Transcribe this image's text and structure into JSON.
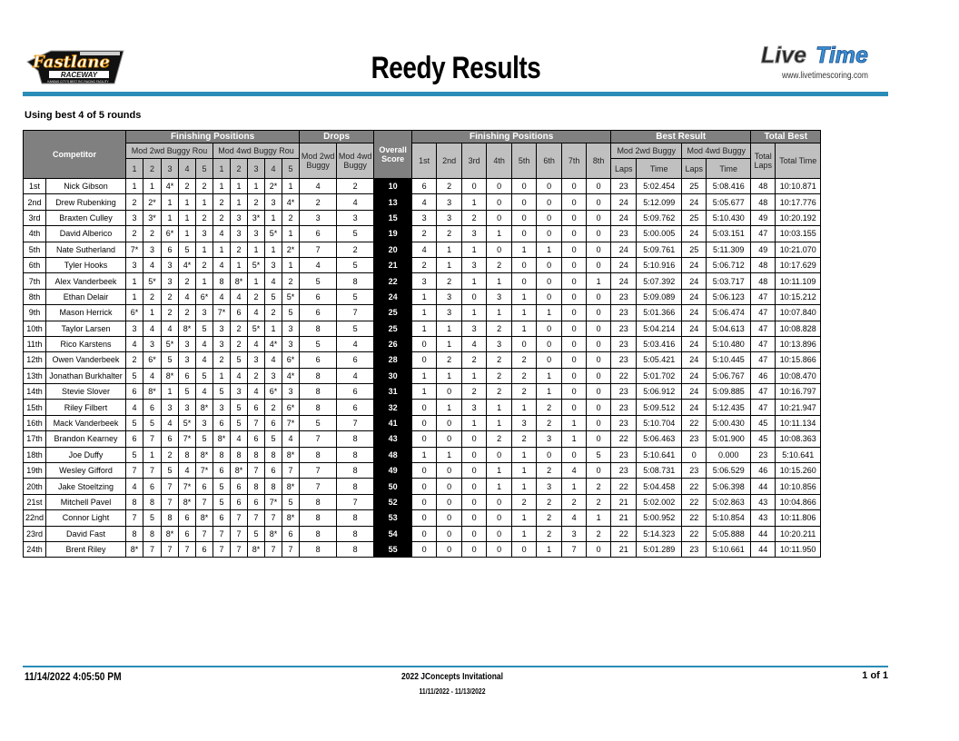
{
  "header": {
    "title": "Reedy Results",
    "left_logo": "Fastlane Raceway - Kansas City's Best R/C Racing Facility",
    "right_logo": "LiveTime",
    "website": "www.livetimescoring.com",
    "subtitle": "Using best 4 of 5 rounds",
    "accent_color": "#2a8db8"
  },
  "table": {
    "competitor": "Competitor",
    "finishing_positions": "Finishing Positions",
    "drops": "Drops",
    "overall_score": "Overall Score",
    "best_result": "Best Result",
    "total_best": "Total Best",
    "class_2wd_rounds": "Mod 2wd Buggy Rou",
    "class_4wd_rounds": "Mod 4wd Buggy Rou",
    "drop_2wd": "Mod 2wd Buggy",
    "drop_4wd": "Mod 4wd Buggy",
    "round_numbers": [
      "1",
      "2",
      "3",
      "4",
      "5"
    ],
    "place_headers": [
      "1st",
      "2nd",
      "3rd",
      "4th",
      "5th",
      "6th",
      "7th",
      "8th"
    ],
    "best_2wd": "Mod 2wd Buggy",
    "best_4wd": "Mod 4wd Buggy",
    "laps": "Laps",
    "time": "Time",
    "total_laps": "Total Laps",
    "total_time": "Total Time"
  },
  "results": [
    {
      "pos": "1st",
      "name": "Nick Gibson",
      "r2": [
        "1",
        "1",
        "4*",
        "2",
        "2"
      ],
      "r4": [
        "1",
        "1",
        "1",
        "2*",
        "1"
      ],
      "d2": "4",
      "d4": "2",
      "score": "10",
      "fin": [
        "6",
        "2",
        "0",
        "0",
        "0",
        "0",
        "0",
        "0"
      ],
      "l2": "23",
      "t2": "5:02.454",
      "l4": "25",
      "t4": "5:08.416",
      "tl": "48",
      "tt": "10:10.871"
    },
    {
      "pos": "2nd",
      "name": "Drew Rubenking",
      "r2": [
        "2",
        "2*",
        "1",
        "1",
        "1"
      ],
      "r4": [
        "2",
        "1",
        "2",
        "3",
        "4*"
      ],
      "d2": "2",
      "d4": "4",
      "score": "13",
      "fin": [
        "4",
        "3",
        "1",
        "0",
        "0",
        "0",
        "0",
        "0"
      ],
      "l2": "24",
      "t2": "5:12.099",
      "l4": "24",
      "t4": "5:05.677",
      "tl": "48",
      "tt": "10:17.776"
    },
    {
      "pos": "3rd",
      "name": "Braxten Culley",
      "r2": [
        "3",
        "3*",
        "1",
        "1",
        "2"
      ],
      "r4": [
        "2",
        "3",
        "3*",
        "1",
        "2"
      ],
      "d2": "3",
      "d4": "3",
      "score": "15",
      "fin": [
        "3",
        "3",
        "2",
        "0",
        "0",
        "0",
        "0",
        "0"
      ],
      "l2": "24",
      "t2": "5:09.762",
      "l4": "25",
      "t4": "5:10.430",
      "tl": "49",
      "tt": "10:20.192"
    },
    {
      "pos": "4th",
      "name": "David Alberico",
      "r2": [
        "2",
        "2",
        "6*",
        "1",
        "3"
      ],
      "r4": [
        "4",
        "3",
        "3",
        "5*",
        "1"
      ],
      "d2": "6",
      "d4": "5",
      "score": "19",
      "fin": [
        "2",
        "2",
        "3",
        "1",
        "0",
        "0",
        "0",
        "0"
      ],
      "l2": "23",
      "t2": "5:00.005",
      "l4": "24",
      "t4": "5:03.151",
      "tl": "47",
      "tt": "10:03.155"
    },
    {
      "pos": "5th",
      "name": "Nate Sutherland",
      "r2": [
        "7*",
        "3",
        "6",
        "5",
        "1"
      ],
      "r4": [
        "1",
        "2",
        "1",
        "1",
        "2*"
      ],
      "d2": "7",
      "d4": "2",
      "score": "20",
      "fin": [
        "4",
        "1",
        "1",
        "0",
        "1",
        "1",
        "0",
        "0"
      ],
      "l2": "24",
      "t2": "5:09.761",
      "l4": "25",
      "t4": "5:11.309",
      "tl": "49",
      "tt": "10:21.070"
    },
    {
      "pos": "6th",
      "name": "Tyler Hooks",
      "r2": [
        "3",
        "4",
        "3",
        "4*",
        "2"
      ],
      "r4": [
        "4",
        "1",
        "5*",
        "3",
        "1"
      ],
      "d2": "4",
      "d4": "5",
      "score": "21",
      "fin": [
        "2",
        "1",
        "3",
        "2",
        "0",
        "0",
        "0",
        "0"
      ],
      "l2": "24",
      "t2": "5:10.916",
      "l4": "24",
      "t4": "5:06.712",
      "tl": "48",
      "tt": "10:17.629"
    },
    {
      "pos": "7th",
      "name": "Alex Vanderbeek",
      "r2": [
        "1",
        "5*",
        "3",
        "2",
        "1"
      ],
      "r4": [
        "8",
        "8*",
        "1",
        "4",
        "2"
      ],
      "d2": "5",
      "d4": "8",
      "score": "22",
      "fin": [
        "3",
        "2",
        "1",
        "1",
        "0",
        "0",
        "0",
        "1"
      ],
      "l2": "24",
      "t2": "5:07.392",
      "l4": "24",
      "t4": "5:03.717",
      "tl": "48",
      "tt": "10:11.109"
    },
    {
      "pos": "8th",
      "name": "Ethan Delair",
      "r2": [
        "1",
        "2",
        "2",
        "4",
        "6*"
      ],
      "r4": [
        "4",
        "4",
        "2",
        "5",
        "5*"
      ],
      "d2": "6",
      "d4": "5",
      "score": "24",
      "fin": [
        "1",
        "3",
        "0",
        "3",
        "1",
        "0",
        "0",
        "0"
      ],
      "l2": "23",
      "t2": "5:09.089",
      "l4": "24",
      "t4": "5:06.123",
      "tl": "47",
      "tt": "10:15.212"
    },
    {
      "pos": "9th",
      "name": "Mason Herrick",
      "r2": [
        "6*",
        "1",
        "2",
        "2",
        "3"
      ],
      "r4": [
        "7*",
        "6",
        "4",
        "2",
        "5"
      ],
      "d2": "6",
      "d4": "7",
      "score": "25",
      "fin": [
        "1",
        "3",
        "1",
        "1",
        "1",
        "1",
        "0",
        "0"
      ],
      "l2": "23",
      "t2": "5:01.366",
      "l4": "24",
      "t4": "5:06.474",
      "tl": "47",
      "tt": "10:07.840"
    },
    {
      "pos": "10th",
      "name": "Taylor Larsen",
      "r2": [
        "3",
        "4",
        "4",
        "8*",
        "5"
      ],
      "r4": [
        "3",
        "2",
        "5*",
        "1",
        "3"
      ],
      "d2": "8",
      "d4": "5",
      "score": "25",
      "fin": [
        "1",
        "1",
        "3",
        "2",
        "1",
        "0",
        "0",
        "0"
      ],
      "l2": "23",
      "t2": "5:04.214",
      "l4": "24",
      "t4": "5:04.613",
      "tl": "47",
      "tt": "10:08.828"
    },
    {
      "pos": "11th",
      "name": "Rico Karstens",
      "r2": [
        "4",
        "3",
        "5*",
        "3",
        "4"
      ],
      "r4": [
        "3",
        "2",
        "4",
        "4*",
        "3"
      ],
      "d2": "5",
      "d4": "4",
      "score": "26",
      "fin": [
        "0",
        "1",
        "4",
        "3",
        "0",
        "0",
        "0",
        "0"
      ],
      "l2": "23",
      "t2": "5:03.416",
      "l4": "24",
      "t4": "5:10.480",
      "tl": "47",
      "tt": "10:13.896"
    },
    {
      "pos": "12th",
      "name": "Owen Vanderbeek",
      "r2": [
        "2",
        "6*",
        "5",
        "3",
        "4"
      ],
      "r4": [
        "2",
        "5",
        "3",
        "4",
        "6*"
      ],
      "d2": "6",
      "d4": "6",
      "score": "28",
      "fin": [
        "0",
        "2",
        "2",
        "2",
        "2",
        "0",
        "0",
        "0"
      ],
      "l2": "23",
      "t2": "5:05.421",
      "l4": "24",
      "t4": "5:10.445",
      "tl": "47",
      "tt": "10:15.866"
    },
    {
      "pos": "13th",
      "name": "Jonathan Burkhalter",
      "r2": [
        "5",
        "4",
        "8*",
        "6",
        "5"
      ],
      "r4": [
        "1",
        "4",
        "2",
        "3",
        "4*"
      ],
      "d2": "8",
      "d4": "4",
      "score": "30",
      "fin": [
        "1",
        "1",
        "1",
        "2",
        "2",
        "1",
        "0",
        "0"
      ],
      "l2": "22",
      "t2": "5:01.702",
      "l4": "24",
      "t4": "5:06.767",
      "tl": "46",
      "tt": "10:08.470"
    },
    {
      "pos": "14th",
      "name": "Stevie Slover",
      "r2": [
        "6",
        "8*",
        "1",
        "5",
        "4"
      ],
      "r4": [
        "5",
        "3",
        "4",
        "6*",
        "3"
      ],
      "d2": "8",
      "d4": "6",
      "score": "31",
      "fin": [
        "1",
        "0",
        "2",
        "2",
        "2",
        "1",
        "0",
        "0"
      ],
      "l2": "23",
      "t2": "5:06.912",
      "l4": "24",
      "t4": "5:09.885",
      "tl": "47",
      "tt": "10:16.797"
    },
    {
      "pos": "15th",
      "name": "Riley Filbert",
      "r2": [
        "4",
        "6",
        "3",
        "3",
        "8*"
      ],
      "r4": [
        "3",
        "5",
        "6",
        "2",
        "6*"
      ],
      "d2": "8",
      "d4": "6",
      "score": "32",
      "fin": [
        "0",
        "1",
        "3",
        "1",
        "1",
        "2",
        "0",
        "0"
      ],
      "l2": "23",
      "t2": "5:09.512",
      "l4": "24",
      "t4": "5:12.435",
      "tl": "47",
      "tt": "10:21.947"
    },
    {
      "pos": "16th",
      "name": "Mack Vanderbeek",
      "r2": [
        "5",
        "5",
        "4",
        "5*",
        "3"
      ],
      "r4": [
        "6",
        "5",
        "7",
        "6",
        "7*"
      ],
      "d2": "5",
      "d4": "7",
      "score": "41",
      "fin": [
        "0",
        "0",
        "1",
        "1",
        "3",
        "2",
        "1",
        "0"
      ],
      "l2": "23",
      "t2": "5:10.704",
      "l4": "22",
      "t4": "5:00.430",
      "tl": "45",
      "tt": "10:11.134"
    },
    {
      "pos": "17th",
      "name": "Brandon Kearney",
      "r2": [
        "6",
        "7",
        "6",
        "7*",
        "5"
      ],
      "r4": [
        "8*",
        "4",
        "6",
        "5",
        "4"
      ],
      "d2": "7",
      "d4": "8",
      "score": "43",
      "fin": [
        "0",
        "0",
        "0",
        "2",
        "2",
        "3",
        "1",
        "0"
      ],
      "l2": "22",
      "t2": "5:06.463",
      "l4": "23",
      "t4": "5:01.900",
      "tl": "45",
      "tt": "10:08.363"
    },
    {
      "pos": "18th",
      "name": "Joe Duffy",
      "r2": [
        "5",
        "1",
        "2",
        "8",
        "8*"
      ],
      "r4": [
        "8",
        "8",
        "8",
        "8",
        "8*"
      ],
      "d2": "8",
      "d4": "8",
      "score": "48",
      "fin": [
        "1",
        "1",
        "0",
        "0",
        "1",
        "0",
        "0",
        "5"
      ],
      "l2": "23",
      "t2": "5:10.641",
      "l4": "0",
      "t4": "0.000",
      "tl": "23",
      "tt": "5:10.641"
    },
    {
      "pos": "19th",
      "name": "Wesley Gifford",
      "r2": [
        "7",
        "7",
        "5",
        "4",
        "7*"
      ],
      "r4": [
        "6",
        "8*",
        "7",
        "6",
        "7"
      ],
      "d2": "7",
      "d4": "8",
      "score": "49",
      "fin": [
        "0",
        "0",
        "0",
        "1",
        "1",
        "2",
        "4",
        "0"
      ],
      "l2": "23",
      "t2": "5:08.731",
      "l4": "23",
      "t4": "5:06.529",
      "tl": "46",
      "tt": "10:15.260"
    },
    {
      "pos": "20th",
      "name": "Jake Stoeltzing",
      "r2": [
        "4",
        "6",
        "7",
        "7*",
        "6"
      ],
      "r4": [
        "5",
        "6",
        "8",
        "8",
        "8*"
      ],
      "d2": "7",
      "d4": "8",
      "score": "50",
      "fin": [
        "0",
        "0",
        "0",
        "1",
        "1",
        "3",
        "1",
        "2"
      ],
      "l2": "22",
      "t2": "5:04.458",
      "l4": "22",
      "t4": "5:06.398",
      "tl": "44",
      "tt": "10:10.856"
    },
    {
      "pos": "21st",
      "name": "Mitchell Pavel",
      "r2": [
        "8",
        "8",
        "7",
        "8*",
        "7"
      ],
      "r4": [
        "5",
        "6",
        "6",
        "7*",
        "5"
      ],
      "d2": "8",
      "d4": "7",
      "score": "52",
      "fin": [
        "0",
        "0",
        "0",
        "0",
        "2",
        "2",
        "2",
        "2"
      ],
      "l2": "21",
      "t2": "5:02.002",
      "l4": "22",
      "t4": "5:02.863",
      "tl": "43",
      "tt": "10:04.866"
    },
    {
      "pos": "22nd",
      "name": "Connor Light",
      "r2": [
        "7",
        "5",
        "8",
        "6",
        "8*"
      ],
      "r4": [
        "6",
        "7",
        "7",
        "7",
        "8*"
      ],
      "d2": "8",
      "d4": "8",
      "score": "53",
      "fin": [
        "0",
        "0",
        "0",
        "0",
        "1",
        "2",
        "4",
        "1"
      ],
      "l2": "21",
      "t2": "5:00.952",
      "l4": "22",
      "t4": "5:10.854",
      "tl": "43",
      "tt": "10:11.806"
    },
    {
      "pos": "23rd",
      "name": "David Fast",
      "r2": [
        "8",
        "8",
        "8*",
        "6",
        "7"
      ],
      "r4": [
        "7",
        "7",
        "5",
        "8*",
        "6"
      ],
      "d2": "8",
      "d4": "8",
      "score": "54",
      "fin": [
        "0",
        "0",
        "0",
        "0",
        "1",
        "2",
        "3",
        "2"
      ],
      "l2": "22",
      "t2": "5:14.323",
      "l4": "22",
      "t4": "5:05.888",
      "tl": "44",
      "tt": "10:20.211"
    },
    {
      "pos": "24th",
      "name": "Brent Riley",
      "r2": [
        "8*",
        "7",
        "7",
        "7",
        "6"
      ],
      "r4": [
        "7",
        "7",
        "8*",
        "7",
        "7"
      ],
      "d2": "8",
      "d4": "8",
      "score": "55",
      "fin": [
        "0",
        "0",
        "0",
        "0",
        "0",
        "1",
        "7",
        "0"
      ],
      "l2": "21",
      "t2": "5:01.289",
      "l4": "23",
      "t4": "5:10.661",
      "tl": "44",
      "tt": "10:11.950"
    }
  ],
  "footer": {
    "printed": "11/14/2022 4:05:50 PM",
    "event": "2022 JConcepts Invitational",
    "dates": "11/11/2022 - 11/13/2022",
    "page": "1 of 1"
  }
}
